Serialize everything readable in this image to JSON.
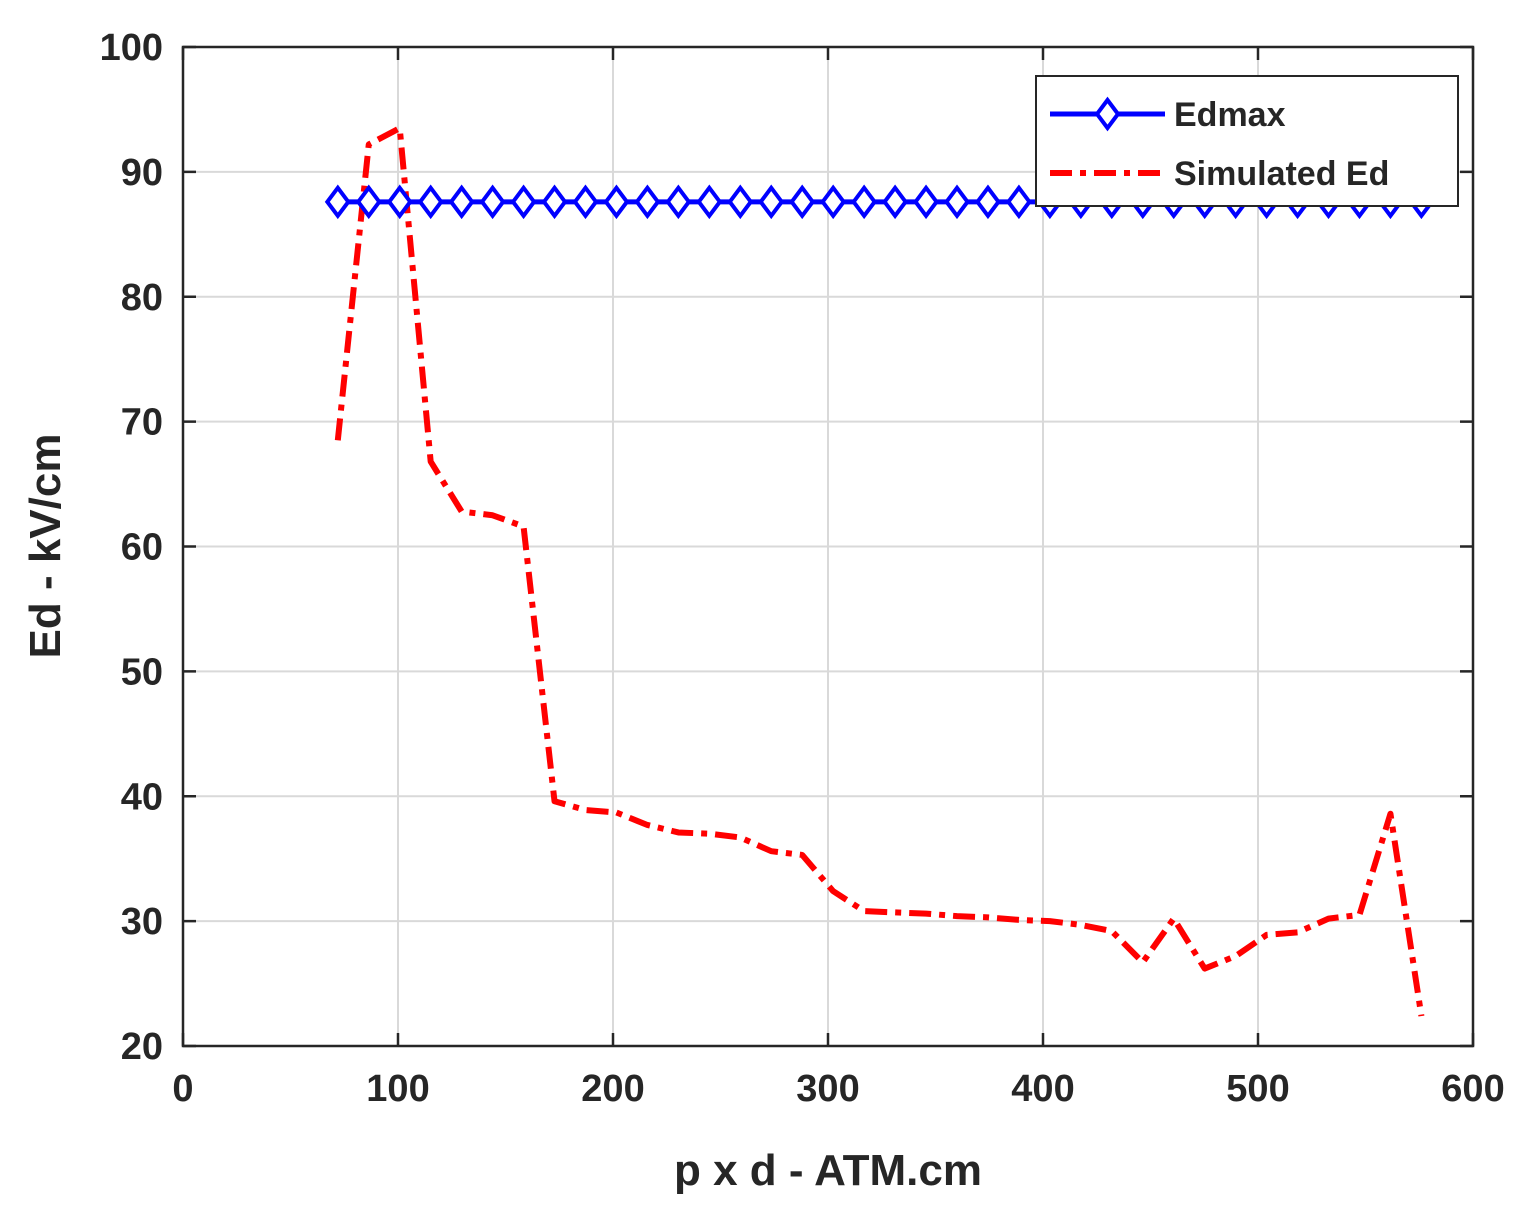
{
  "chart_data": {
    "type": "line",
    "xlabel": "p x d - ATM.cm",
    "ylabel": "Ed - kV/cm",
    "xlim": [
      0,
      600
    ],
    "ylim": [
      20,
      100
    ],
    "xticks": [
      "0",
      "100",
      "200",
      "300",
      "400",
      "500",
      "600"
    ],
    "yticks": [
      "20",
      "30",
      "40",
      "50",
      "60",
      "70",
      "80",
      "90",
      "100"
    ],
    "grid": true,
    "legend_position": "top-right",
    "series": [
      {
        "name": "Edmax",
        "style": "solid",
        "marker": "diamond",
        "color": "#0000ff",
        "x": [
          72,
          86.4,
          100.8,
          115.2,
          129.6,
          144,
          158.4,
          172.8,
          187.2,
          201.6,
          216,
          230.4,
          244.8,
          259.2,
          273.6,
          288,
          302.4,
          316.8,
          331.2,
          345.6,
          360,
          374.4,
          388.8,
          403.2,
          417.6,
          432,
          446.4,
          460.8,
          475.2,
          489.6,
          504,
          518.4,
          532.8,
          547.2,
          561.6,
          576
        ],
        "y": [
          87.6,
          87.6,
          87.6,
          87.6,
          87.6,
          87.6,
          87.6,
          87.6,
          87.6,
          87.6,
          87.6,
          87.6,
          87.6,
          87.6,
          87.6,
          87.6,
          87.6,
          87.6,
          87.6,
          87.6,
          87.6,
          87.6,
          87.6,
          87.6,
          87.6,
          87.6,
          87.6,
          87.6,
          87.6,
          87.6,
          87.6,
          87.6,
          87.6,
          87.6,
          87.6,
          87.6
        ]
      },
      {
        "name": "Simulated Ed",
        "style": "dash-dot",
        "color": "#ff0000",
        "x": [
          72,
          86.4,
          100.8,
          115.2,
          129.6,
          144,
          158.4,
          172.8,
          187.2,
          201.6,
          216,
          230.4,
          244.8,
          259.2,
          273.6,
          288,
          302.4,
          316.8,
          331.2,
          345.6,
          360,
          374.4,
          388.8,
          403.2,
          417.6,
          432,
          446.4,
          460.8,
          475.2,
          489.6,
          504,
          518.4,
          532.8,
          547.2,
          561.6,
          576
        ],
        "y": [
          68.5,
          92.2,
          93.5,
          66.8,
          62.8,
          62.5,
          61.6,
          39.6,
          38.9,
          38.7,
          37.7,
          37.1,
          37.0,
          36.7,
          35.6,
          35.3,
          32.4,
          30.8,
          30.7,
          30.6,
          30.4,
          30.3,
          30.1,
          30.0,
          29.7,
          29.2,
          26.7,
          30.2,
          26.2,
          27.2,
          28.9,
          29.1,
          30.2,
          30.5,
          38.6,
          22.4
        ]
      }
    ]
  }
}
